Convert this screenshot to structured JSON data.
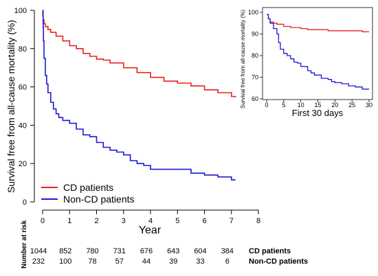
{
  "chart_data": [
    {
      "type": "line",
      "ylabel": "Survival free from all-cause mortality (%)",
      "xlabel": "Year",
      "xlim": [
        0,
        8
      ],
      "ylim": [
        0,
        100
      ],
      "x_ticks": [
        "0",
        "1",
        "2",
        "3",
        "4",
        "5",
        "6",
        "7",
        "8"
      ],
      "y_ticks": [
        "0",
        "20",
        "40",
        "60",
        "80",
        "100"
      ],
      "grid": false,
      "legend_position": "bottom-left",
      "series": [
        {
          "name": "CD patients",
          "color": "#e8211d",
          "step": true,
          "x": [
            0,
            0.02,
            0.05,
            0.1,
            0.2,
            0.3,
            0.5,
            0.75,
            1.0,
            1.25,
            1.5,
            1.75,
            2.0,
            2.25,
            2.5,
            3.0,
            3.5,
            4.0,
            4.5,
            5.0,
            5.5,
            6.0,
            6.5,
            7.0,
            7.15
          ],
          "y": [
            100,
            95,
            93,
            91.5,
            90,
            88.5,
            86.5,
            84,
            81.5,
            80,
            77.5,
            76,
            74.5,
            74,
            72.5,
            70,
            67.5,
            65,
            63,
            62,
            60.5,
            58.5,
            57,
            55,
            54.5
          ]
        },
        {
          "name": "Non-CD patients",
          "color": "#1a18d6",
          "step": true,
          "x": [
            0,
            0.01,
            0.02,
            0.03,
            0.05,
            0.1,
            0.15,
            0.2,
            0.3,
            0.4,
            0.5,
            0.6,
            0.75,
            1.0,
            1.25,
            1.5,
            1.75,
            2.0,
            2.25,
            2.5,
            2.75,
            3.0,
            3.25,
            3.5,
            3.75,
            4.0,
            4.5,
            5.0,
            5.5,
            6.0,
            6.5,
            7.0,
            7.15
          ],
          "y": [
            100,
            97,
            91,
            84,
            75,
            66,
            61.5,
            57,
            52,
            48.5,
            46,
            44,
            42.5,
            41,
            38,
            35,
            34,
            31,
            28.5,
            27,
            26,
            24.5,
            21.5,
            20,
            19,
            17,
            17,
            17,
            15,
            14,
            13,
            11.5,
            11.5
          ]
        }
      ],
      "number_at_risk": {
        "title": "Number at risk",
        "times": [
          0,
          1,
          2,
          3,
          4,
          5,
          6,
          7
        ],
        "rows": [
          {
            "label": "CD patients",
            "values": [
              "1044",
              "852",
              "780",
              "731",
              "676",
              "643",
              "604",
              "384"
            ]
          },
          {
            "label": "Non-CD patients",
            "values": [
              "232",
              "100",
              "78",
              "57",
              "44",
              "39",
              "33",
              "6"
            ]
          }
        ]
      }
    },
    {
      "type": "line",
      "ylabel": "Survival free from all-cause mortality (%)",
      "xlabel": "First 30 days",
      "xlim": [
        0,
        30
      ],
      "ylim": [
        60,
        100
      ],
      "x_ticks": [
        "0",
        "5",
        "10",
        "15",
        "20",
        "25",
        "30"
      ],
      "y_ticks": [
        "60",
        "70",
        "80",
        "90",
        "100"
      ],
      "grid": false,
      "series": [
        {
          "name": "CD patients",
          "color": "#e8211d",
          "step": true,
          "x": [
            0,
            0.5,
            1,
            2,
            3,
            5,
            7,
            10,
            12,
            15,
            18,
            20,
            22,
            25,
            28,
            30
          ],
          "y": [
            99,
            97,
            95.5,
            95,
            94.5,
            93.5,
            93,
            92.5,
            92,
            92,
            91.5,
            91.5,
            91.5,
            91.5,
            91,
            91
          ]
        },
        {
          "name": "Non-CD patients",
          "color": "#1a18d6",
          "step": true,
          "x": [
            0,
            0.5,
            1,
            2,
            3,
            3.5,
            4,
            5,
            6,
            7,
            8,
            9,
            10,
            12,
            13,
            14,
            16,
            18,
            19,
            20,
            22,
            24,
            26,
            28,
            29,
            30
          ],
          "y": [
            99,
            97,
            95,
            92.5,
            90,
            86,
            83,
            81,
            80,
            78.5,
            77,
            76.5,
            75,
            73,
            72,
            71,
            69.5,
            69,
            68,
            67.5,
            67,
            66,
            65.5,
            64.5,
            64.5,
            64.5
          ]
        }
      ]
    }
  ]
}
